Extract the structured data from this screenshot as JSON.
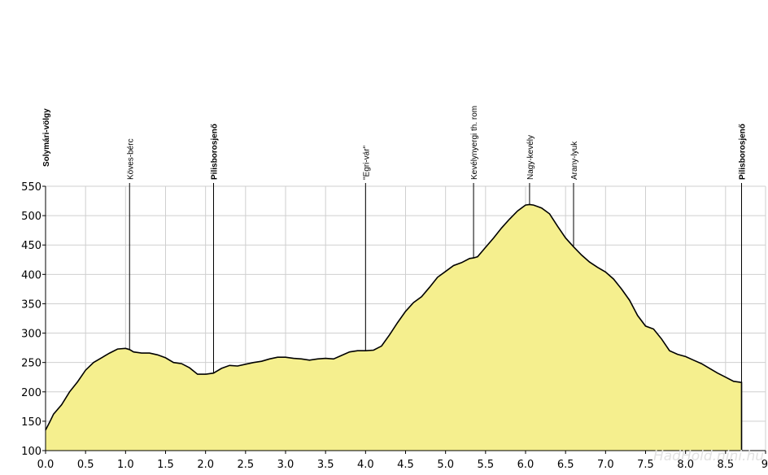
{
  "chart_data": {
    "type": "area",
    "title": "",
    "xlabel": "",
    "ylabel": "",
    "xlim": [
      0,
      9
    ],
    "ylim": [
      100,
      550
    ],
    "grid": true,
    "fill_color": "#f5ef8e",
    "line_color": "#000000",
    "x_ticks": [
      "0.0",
      "0.5",
      "1.0",
      "1.5",
      "2.0",
      "2.5",
      "3.0",
      "3.5",
      "4.0",
      "4.5",
      "5.0",
      "5.5",
      "6.0",
      "6.5",
      "7.0",
      "7.5",
      "8.0",
      "8.5",
      "9"
    ],
    "y_ticks": [
      "100",
      "150",
      "200",
      "250",
      "300",
      "350",
      "400",
      "450",
      "500",
      "550"
    ],
    "series": [
      {
        "x": [
          0.0,
          0.05,
          0.1,
          0.2,
          0.3,
          0.4,
          0.5,
          0.6,
          0.7,
          0.8,
          0.9,
          1.0,
          1.05,
          1.1,
          1.2,
          1.3,
          1.4,
          1.5,
          1.6,
          1.7,
          1.8,
          1.9,
          2.0,
          2.1,
          2.2,
          2.3,
          2.4,
          2.5,
          2.6,
          2.7,
          2.8,
          2.9,
          3.0,
          3.1,
          3.2,
          3.3,
          3.4,
          3.5,
          3.6,
          3.7,
          3.8,
          3.9,
          4.0,
          4.1,
          4.2,
          4.3,
          4.4,
          4.5,
          4.6,
          4.7,
          4.8,
          4.9,
          5.0,
          5.1,
          5.2,
          5.3,
          5.35,
          5.4,
          5.5,
          5.6,
          5.7,
          5.8,
          5.9,
          6.0,
          6.05,
          6.1,
          6.2,
          6.3,
          6.4,
          6.5,
          6.6,
          6.7,
          6.8,
          6.9,
          7.0,
          7.1,
          7.2,
          7.3,
          7.4,
          7.5,
          7.6,
          7.7,
          7.8,
          7.9,
          8.0,
          8.1,
          8.2,
          8.3,
          8.4,
          8.5,
          8.6,
          8.7
        ],
        "values": [
          135,
          148,
          162,
          178,
          200,
          217,
          237,
          250,
          258,
          266,
          273,
          274,
          272,
          268,
          266,
          266,
          263,
          258,
          250,
          248,
          241,
          230,
          230,
          232,
          240,
          245,
          244,
          247,
          250,
          252,
          256,
          259,
          259,
          257,
          256,
          254,
          256,
          257,
          256,
          262,
          268,
          270,
          270,
          271,
          278,
          297,
          318,
          337,
          352,
          362,
          378,
          395,
          405,
          415,
          420,
          427,
          428,
          430,
          446,
          462,
          479,
          494,
          508,
          518,
          519,
          518,
          513,
          503,
          482,
          462,
          447,
          433,
          421,
          412,
          404,
          392,
          375,
          356,
          330,
          312,
          307,
          290,
          270,
          264,
          260,
          254,
          248,
          240,
          232,
          225,
          218,
          216
        ]
      }
    ],
    "annotations": [
      {
        "x": 0.0,
        "label": "Solymári-völgy",
        "bold": true
      },
      {
        "x": 1.05,
        "label": "Köves-bérc",
        "bold": false
      },
      {
        "x": 2.1,
        "label": "Pilisborosjenő",
        "bold": true
      },
      {
        "x": 4.0,
        "label": "\"Egri-vár\"",
        "bold": false
      },
      {
        "x": 5.35,
        "label": "Kevélynyergi th. rom",
        "bold": false
      },
      {
        "x": 6.05,
        "label": "Nagy-kevély",
        "bold": false
      },
      {
        "x": 6.6,
        "label": "Arany-lyuk",
        "bold": false
      },
      {
        "x": 8.7,
        "label": "Pilisborosjenő",
        "bold": true
      }
    ],
    "watermark": "HadHold.nini.hu"
  }
}
